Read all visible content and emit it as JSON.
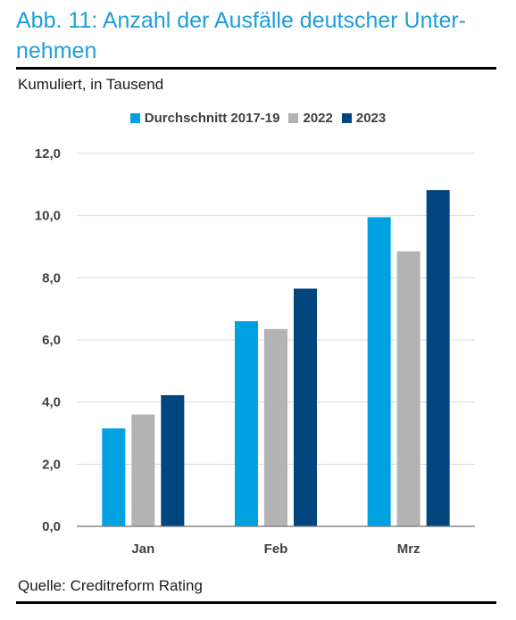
{
  "header": {
    "title": "Abb. 11: Anzahl der Ausfälle deutscher Unter- nehmen",
    "subtitle": "Kumuliert, in Tausend"
  },
  "footer": {
    "source": "Quelle: Creditreform Rating"
  },
  "colors": {
    "title": "#1f9ed8",
    "grid": "#d9d9d9",
    "axis": "#7f7f7f"
  },
  "chart_data": {
    "type": "bar",
    "categories": [
      "Jan",
      "Feb",
      "Mrz"
    ],
    "series": [
      {
        "name": "Durchschnitt 2017-19",
        "color": "#00a1e0",
        "values": [
          3.15,
          6.6,
          9.95
        ]
      },
      {
        "name": "2022",
        "color": "#b3b3b3",
        "values": [
          3.6,
          6.35,
          8.85
        ]
      },
      {
        "name": "2023",
        "color": "#00457e",
        "values": [
          4.22,
          7.65,
          10.82
        ]
      }
    ],
    "ylim": [
      0,
      12
    ],
    "yticks": [
      "0,0",
      "2,0",
      "4,0",
      "6,0",
      "8,0",
      "10,0",
      "12,0"
    ],
    "ytick_values": [
      0,
      2,
      4,
      6,
      8,
      10,
      12
    ],
    "grid": true,
    "legend_position": "top-center",
    "xlabel": "",
    "ylabel": ""
  }
}
